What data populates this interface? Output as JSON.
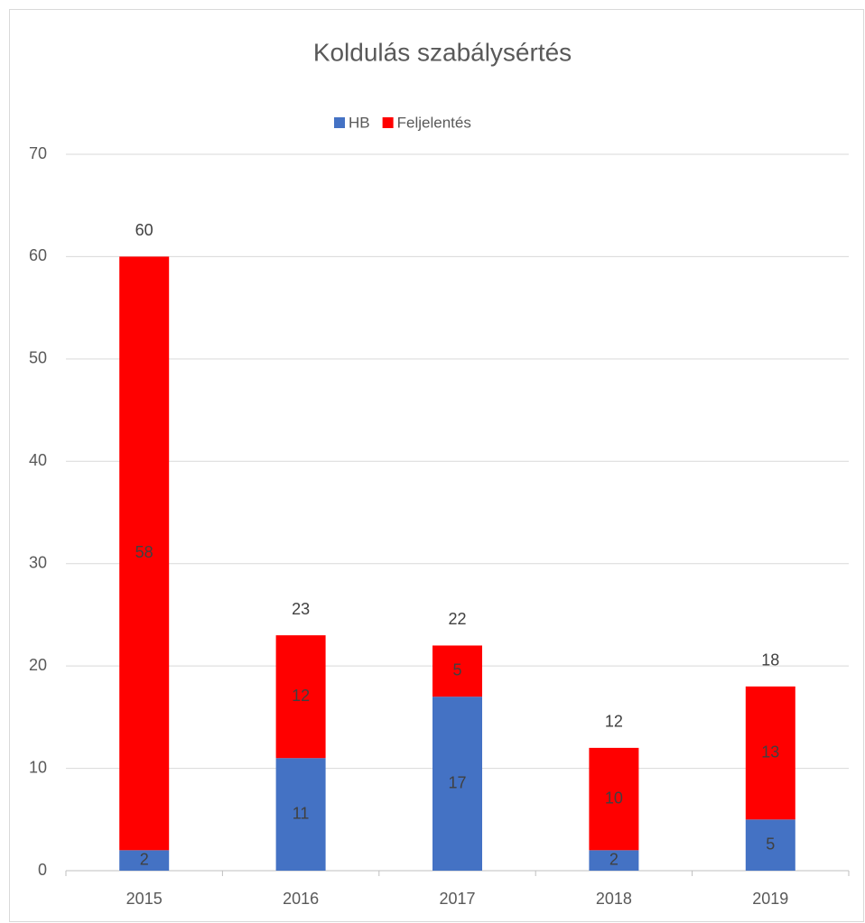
{
  "chart_data": {
    "type": "stacked_bar",
    "title": "Koldulás szabálysértés",
    "categories": [
      "2015",
      "2016",
      "2017",
      "2018",
      "2019"
    ],
    "series": [
      {
        "name": "HB",
        "color": "#4472c4",
        "values": [
          2,
          11,
          17,
          2,
          5
        ]
      },
      {
        "name": "Feljelentés",
        "color": "#ff0000",
        "values": [
          58,
          12,
          5,
          10,
          13
        ]
      }
    ],
    "totals": [
      60,
      23,
      22,
      12,
      18
    ],
    "ylim": [
      0,
      70
    ],
    "yticks": [
      0,
      10,
      20,
      30,
      40,
      50,
      60,
      70
    ],
    "grid": true,
    "legend": "top"
  }
}
